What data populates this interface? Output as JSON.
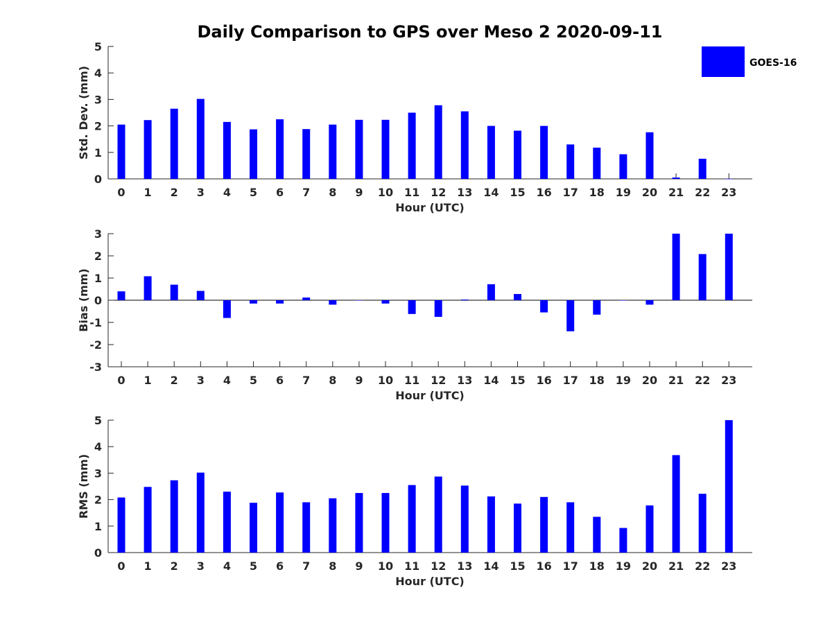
{
  "title": "Daily Comparison to GPS over Meso 2 2020-09-11",
  "legend": {
    "label": "GOES-16",
    "color": "#0000ff",
    "placement": "top-right"
  },
  "chart_data": [
    {
      "type": "bar",
      "title": "Daily Comparison to GPS over Meso 2 2020-09-11",
      "xlabel": "Hour (UTC)",
      "ylabel": "Std. Dev. (mm)",
      "categories": [
        "0",
        "1",
        "2",
        "3",
        "4",
        "5",
        "6",
        "7",
        "8",
        "9",
        "10",
        "11",
        "12",
        "13",
        "14",
        "15",
        "16",
        "17",
        "18",
        "19",
        "20",
        "21",
        "22",
        "23"
      ],
      "yticks": [
        "0",
        "1",
        "2",
        "3",
        "4",
        "5"
      ],
      "ylim": [
        0,
        5
      ],
      "grid": false,
      "series": [
        {
          "name": "GOES-16",
          "color": "#0000ff",
          "values": [
            2.05,
            2.22,
            2.65,
            3.02,
            2.15,
            1.87,
            2.25,
            1.88,
            2.05,
            2.23,
            2.23,
            2.5,
            2.78,
            2.55,
            2.0,
            1.82,
            2.0,
            1.3,
            1.18,
            0.93,
            1.76,
            0.05,
            0.76,
            0.0
          ]
        }
      ]
    },
    {
      "type": "bar",
      "xlabel": "Hour (UTC)",
      "ylabel": "Bias (mm)",
      "categories": [
        "0",
        "1",
        "2",
        "3",
        "4",
        "5",
        "6",
        "7",
        "8",
        "9",
        "10",
        "11",
        "12",
        "13",
        "14",
        "15",
        "16",
        "17",
        "18",
        "19",
        "20",
        "21",
        "22",
        "23"
      ],
      "yticks": [
        "-3",
        "-2",
        "-1",
        "0",
        "1",
        "2",
        "3"
      ],
      "ylim": [
        -3,
        3
      ],
      "grid": false,
      "series": [
        {
          "name": "GOES-16",
          "color": "#0000ff",
          "values": [
            0.4,
            1.08,
            0.7,
            0.42,
            -0.8,
            -0.15,
            -0.15,
            0.12,
            -0.2,
            0.0,
            -0.15,
            -0.62,
            -0.75,
            0.03,
            0.72,
            0.28,
            -0.55,
            -1.4,
            -0.65,
            0.0,
            -0.2,
            3.0,
            2.08,
            3.0
          ]
        }
      ]
    },
    {
      "type": "bar",
      "xlabel": "Hour (UTC)",
      "ylabel": "RMS (mm)",
      "categories": [
        "0",
        "1",
        "2",
        "3",
        "4",
        "5",
        "6",
        "7",
        "8",
        "9",
        "10",
        "11",
        "12",
        "13",
        "14",
        "15",
        "16",
        "17",
        "18",
        "19",
        "20",
        "21",
        "22",
        "23"
      ],
      "yticks": [
        "0",
        "1",
        "2",
        "3",
        "4",
        "5"
      ],
      "ylim": [
        0,
        5
      ],
      "grid": false,
      "series": [
        {
          "name": "GOES-16",
          "color": "#0000ff",
          "values": [
            2.08,
            2.48,
            2.73,
            3.02,
            2.3,
            1.88,
            2.27,
            1.9,
            2.05,
            2.25,
            2.25,
            2.55,
            2.87,
            2.53,
            2.12,
            1.85,
            2.1,
            1.9,
            1.35,
            0.93,
            1.78,
            3.68,
            2.22,
            5.0
          ]
        }
      ]
    }
  ]
}
